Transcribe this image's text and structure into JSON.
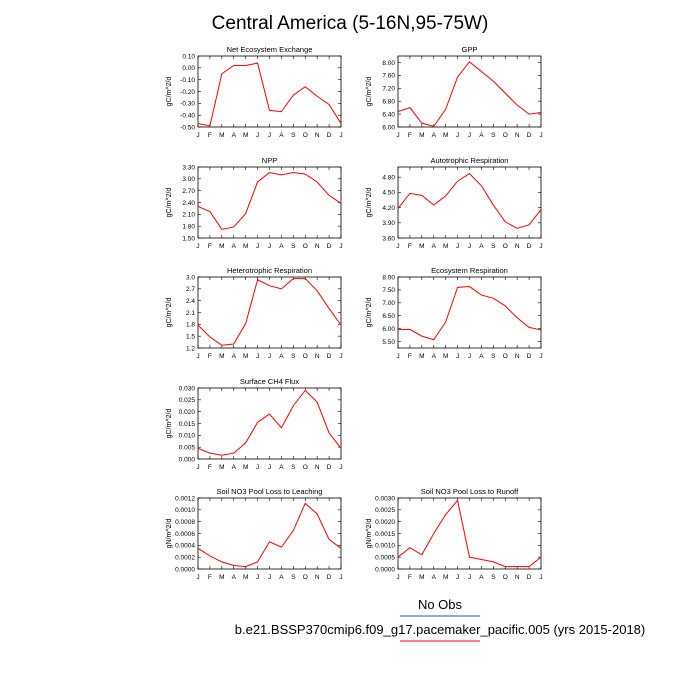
{
  "title": "Central America (5-16N,95-75W)",
  "legend": {
    "obs_label": "No Obs",
    "obs_color": "#2f4f9f",
    "case_label": "b.e21.BSSP370cmip6.f09_g17.pacemaker_pacific.005 (yrs 2015-2018)",
    "case_color": "#ff0000"
  },
  "chart_data": [
    {
      "type": "line",
      "title": "Net Ecosystem Exchange",
      "ylabel": "gC/m^2/d",
      "x": [
        "J",
        "F",
        "M",
        "A",
        "M",
        "J",
        "J",
        "A",
        "S",
        "O",
        "N",
        "D",
        "J"
      ],
      "ylim": [
        -0.5,
        0.1
      ],
      "yticks": [
        "0.10",
        "0.00",
        "-0.10",
        "-0.20",
        "-0.30",
        "-0.40",
        "-0.50"
      ],
      "values": [
        -0.47,
        -0.49,
        -0.05,
        0.02,
        0.02,
        0.04,
        -0.36,
        -0.37,
        -0.23,
        -0.16,
        -0.24,
        -0.31,
        -0.47
      ]
    },
    {
      "type": "line",
      "title": "GPP",
      "ylabel": "gC/m^2/d",
      "x": [
        "J",
        "F",
        "M",
        "A",
        "M",
        "J",
        "J",
        "A",
        "S",
        "O",
        "N",
        "D",
        "J"
      ],
      "ylim": [
        6.0,
        8.2
      ],
      "yticks": [
        "8.00",
        "7.60",
        "7.20",
        "6.80",
        "6.40",
        "6.00"
      ],
      "values": [
        6.48,
        6.6,
        6.12,
        6.02,
        6.55,
        7.55,
        8.02,
        7.72,
        7.42,
        7.05,
        6.68,
        6.4,
        6.45
      ]
    },
    {
      "type": "line",
      "title": "NPP",
      "ylabel": "gC/m^2/d",
      "x": [
        "J",
        "F",
        "M",
        "A",
        "M",
        "J",
        "J",
        "A",
        "S",
        "O",
        "N",
        "D",
        "J"
      ],
      "ylim": [
        1.5,
        3.3
      ],
      "yticks": [
        "3.30",
        "3.00",
        "2.70",
        "2.40",
        "2.10",
        "1.80",
        "1.50"
      ],
      "values": [
        2.3,
        2.17,
        1.72,
        1.78,
        2.12,
        2.92,
        3.16,
        3.1,
        3.16,
        3.12,
        2.92,
        2.58,
        2.38
      ]
    },
    {
      "type": "line",
      "title": "Autotrophic Respiration",
      "ylabel": "gC/m^2/d",
      "x": [
        "J",
        "F",
        "M",
        "A",
        "M",
        "J",
        "J",
        "A",
        "S",
        "O",
        "N",
        "D",
        "J"
      ],
      "ylim": [
        3.6,
        5.0
      ],
      "yticks": [
        "4.80",
        "4.50",
        "4.20",
        "3.90",
        "3.60"
      ],
      "values": [
        4.18,
        4.48,
        4.44,
        4.25,
        4.43,
        4.72,
        4.87,
        4.63,
        4.25,
        3.92,
        3.79,
        3.86,
        4.16
      ]
    },
    {
      "type": "line",
      "title": "Heterotrophic Respiration",
      "ylabel": "gC/m^2/d",
      "x": [
        "J",
        "F",
        "M",
        "A",
        "M",
        "J",
        "J",
        "A",
        "S",
        "O",
        "N",
        "D",
        "J"
      ],
      "ylim": [
        1.2,
        3.0
      ],
      "yticks": [
        "3.0",
        "2.7",
        "2.4",
        "2.1",
        "1.8",
        "1.5",
        "1.2"
      ],
      "values": [
        1.78,
        1.48,
        1.27,
        1.3,
        1.82,
        2.93,
        2.78,
        2.7,
        2.96,
        2.96,
        2.65,
        2.2,
        1.78
      ]
    },
    {
      "type": "line",
      "title": "Ecosystem Respiration",
      "ylabel": "gC/m^2/d",
      "x": [
        "J",
        "F",
        "M",
        "A",
        "M",
        "J",
        "J",
        "A",
        "S",
        "O",
        "N",
        "D",
        "J"
      ],
      "ylim": [
        5.25,
        8.0
      ],
      "yticks": [
        "8.00",
        "7.50",
        "7.00",
        "6.50",
        "6.00",
        "5.50"
      ],
      "values": [
        5.96,
        5.97,
        5.71,
        5.57,
        6.26,
        7.6,
        7.63,
        7.3,
        7.18,
        6.88,
        6.42,
        6.05,
        5.95
      ]
    },
    {
      "type": "line",
      "title": "Surface CH4 Flux",
      "ylabel": "gC/m^2/d",
      "x": [
        "J",
        "F",
        "M",
        "A",
        "M",
        "J",
        "J",
        "A",
        "S",
        "O",
        "N",
        "D",
        "J"
      ],
      "ylim": [
        0.0,
        0.03
      ],
      "yticks": [
        "0.030",
        "0.025",
        "0.020",
        "0.015",
        "0.010",
        "0.005",
        "0.000"
      ],
      "values": [
        0.0045,
        0.0025,
        0.0016,
        0.0025,
        0.0068,
        0.0155,
        0.019,
        0.0132,
        0.0225,
        0.029,
        0.024,
        0.011,
        0.0045
      ]
    },
    {
      "type": "line",
      "title": "Soil NO3 Pool Loss to Leaching",
      "ylabel": "gN/m^2/d",
      "x": [
        "J",
        "F",
        "M",
        "A",
        "M",
        "J",
        "J",
        "A",
        "S",
        "O",
        "N",
        "D",
        "J"
      ],
      "ylim": [
        0.0,
        0.0012
      ],
      "yticks": [
        "0.0012",
        "0.0010",
        "0.0008",
        "0.0006",
        "0.0004",
        "0.0002",
        "0.0000"
      ],
      "values": [
        0.00035,
        0.00022,
        0.00012,
        6e-05,
        4e-05,
        0.00012,
        0.00046,
        0.00037,
        0.00065,
        0.00111,
        0.00093,
        0.0005,
        0.00035
      ]
    },
    {
      "type": "line",
      "title": "Soil NO3 Pool Loss to Runoff",
      "ylabel": "gN/m^2/d",
      "x": [
        "J",
        "F",
        "M",
        "A",
        "M",
        "J",
        "J",
        "A",
        "S",
        "O",
        "N",
        "D",
        "J"
      ],
      "ylim": [
        0.0,
        0.003
      ],
      "yticks": [
        "0.0030",
        "0.0025",
        "0.0020",
        "0.0015",
        "0.0010",
        "0.0005",
        "0.0000"
      ],
      "values": [
        0.0005,
        0.0009,
        0.0006,
        0.0015,
        0.0023,
        0.0029,
        0.0005,
        0.0004,
        0.0003,
        0.0001,
        0.0001,
        0.0001,
        0.0005
      ]
    }
  ]
}
